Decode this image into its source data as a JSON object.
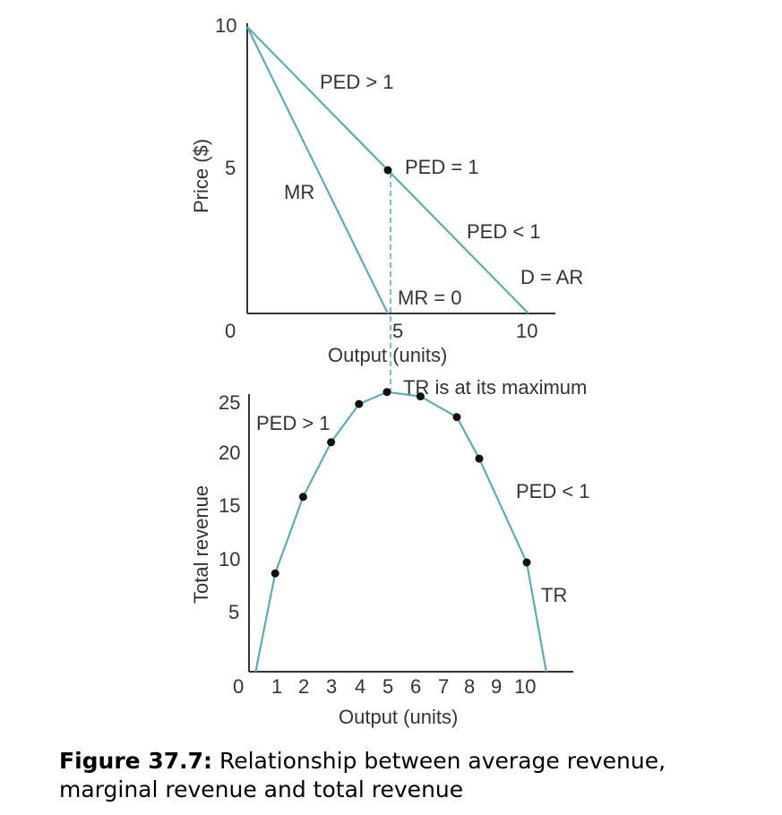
{
  "chart_data": [
    {
      "type": "line",
      "ylabel": "Price ($)",
      "xlabel": "Output (units)",
      "xlim": [
        0,
        11
      ],
      "ylim": [
        0,
        10
      ],
      "x_ticks": [
        "0",
        "5",
        "10"
      ],
      "y_ticks": [
        "10",
        "5"
      ],
      "series": [
        {
          "name": "D = AR",
          "x": [
            0,
            10
          ],
          "y": [
            10,
            0
          ]
        },
        {
          "name": "MR",
          "x": [
            0,
            5
          ],
          "y": [
            10,
            0
          ]
        }
      ],
      "point": {
        "x": 5,
        "y": 5,
        "label": "PED = 1"
      },
      "annotations": {
        "elastic": "PED > 1",
        "inelastic": "PED < 1",
        "mr_zero": "MR = 0"
      },
      "grid": false
    },
    {
      "type": "line",
      "ylabel": "Total revenue",
      "xlabel": "Output (units)",
      "xlim": [
        0,
        12
      ],
      "ylim": [
        0,
        27
      ],
      "x_ticks": [
        "0",
        "1",
        "2",
        "3",
        "4",
        "5",
        "6",
        "7",
        "8",
        "9",
        "10"
      ],
      "y_ticks": [
        "25",
        "20",
        "15",
        "10",
        "5"
      ],
      "series": [
        {
          "name": "TR",
          "x": [
            0.3,
            1,
            2,
            3,
            4,
            5,
            6.2,
            7.5,
            8.3,
            10,
            10.7
          ],
          "y": [
            0,
            9,
            16,
            21,
            24.5,
            25.6,
            25.2,
            23.3,
            19.5,
            10,
            0
          ]
        }
      ],
      "annotations": {
        "max": "TR is at its maximum",
        "elastic": "PED > 1",
        "inelastic": "PED < 1"
      },
      "grid": false
    }
  ],
  "caption": {
    "label": "Figure 37.7:",
    "text": " Relationship between average revenue, marginal revenue and total revenue"
  },
  "colors": {
    "curve": "#5aaeb3",
    "axis": "#333333",
    "point": "#111111"
  }
}
